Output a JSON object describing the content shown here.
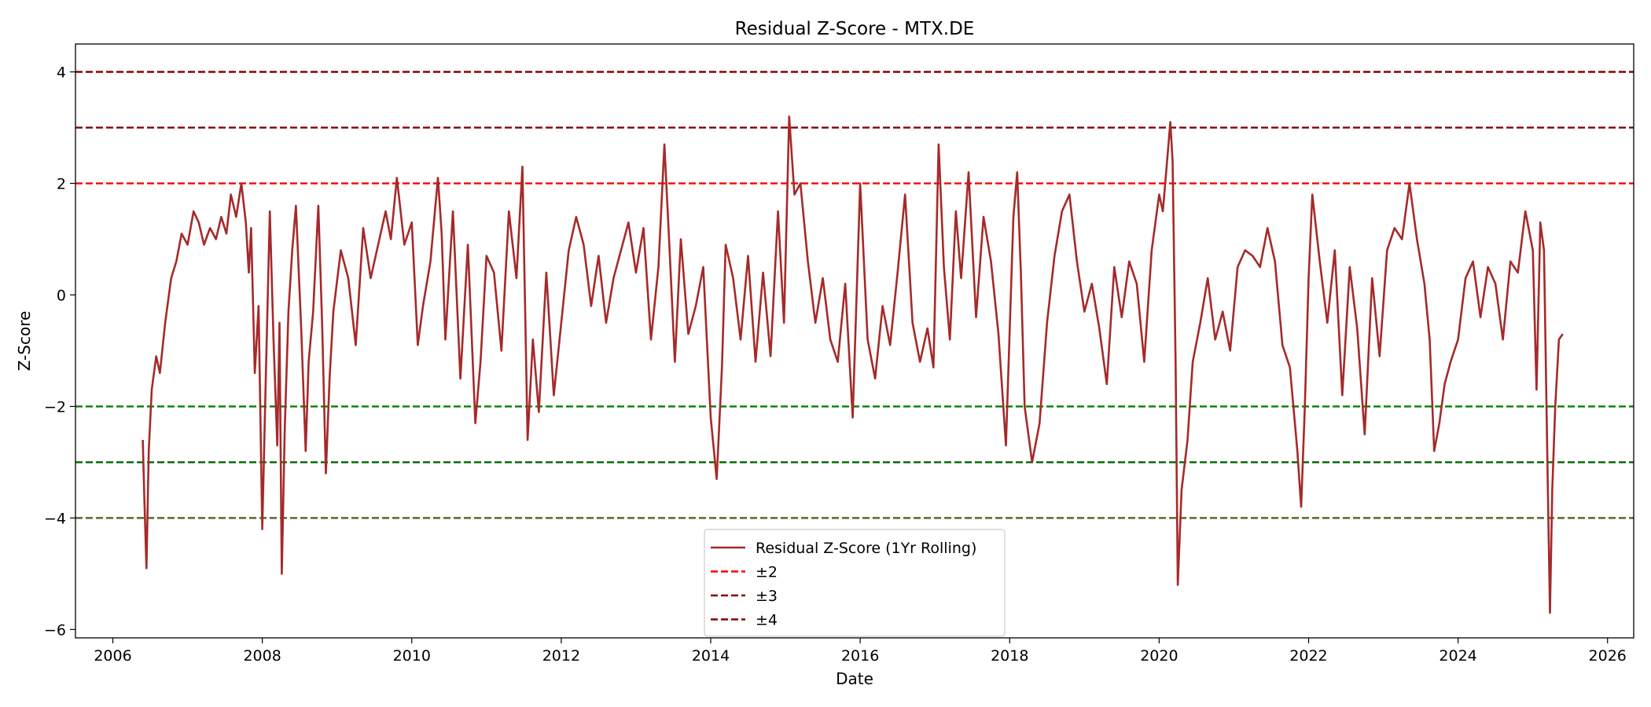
{
  "chart_data": {
    "type": "line",
    "title": "Residual Z-Score - MTX.DE",
    "xlabel": "Date",
    "ylabel": "Z-Score",
    "xlim": [
      2005.5,
      2026.35
    ],
    "ylim": [
      -6.15,
      4.5
    ],
    "xticks": [
      2006,
      2008,
      2010,
      2012,
      2014,
      2016,
      2018,
      2020,
      2022,
      2024,
      2026
    ],
    "yticks": [
      -6,
      -4,
      -2,
      0,
      2,
      4
    ],
    "grid": false,
    "legend_position": "lower center",
    "series": [
      {
        "name": "Residual Z-Score (1Yr Rolling)",
        "color": "#a52a2a",
        "x": [
          2006.4,
          2006.42,
          2006.45,
          2006.48,
          2006.52,
          2006.58,
          2006.63,
          2006.7,
          2006.78,
          2006.85,
          2006.92,
          2007.0,
          2007.08,
          2007.15,
          2007.22,
          2007.3,
          2007.38,
          2007.45,
          2007.52,
          2007.58,
          2007.65,
          2007.72,
          2007.78,
          2007.82,
          2007.85,
          2007.9,
          2007.95,
          2008.0,
          2008.05,
          2008.1,
          2008.15,
          2008.2,
          2008.23,
          2008.26,
          2008.3,
          2008.35,
          2008.4,
          2008.45,
          2008.52,
          2008.58,
          2008.62,
          2008.68,
          2008.75,
          2008.8,
          2008.85,
          2008.9,
          2008.95,
          2009.05,
          2009.15,
          2009.25,
          2009.35,
          2009.45,
          2009.55,
          2009.65,
          2009.72,
          2009.8,
          2009.9,
          2010.0,
          2010.08,
          2010.15,
          2010.25,
          2010.35,
          2010.4,
          2010.45,
          2010.55,
          2010.65,
          2010.75,
          2010.85,
          2010.92,
          2011.0,
          2011.1,
          2011.2,
          2011.3,
          2011.4,
          2011.48,
          2011.55,
          2011.62,
          2011.7,
          2011.8,
          2011.9,
          2012.0,
          2012.1,
          2012.2,
          2012.3,
          2012.4,
          2012.5,
          2012.6,
          2012.7,
          2012.8,
          2012.9,
          2013.0,
          2013.1,
          2013.2,
          2013.3,
          2013.38,
          2013.45,
          2013.52,
          2013.6,
          2013.7,
          2013.8,
          2013.9,
          2014.0,
          2014.08,
          2014.15,
          2014.2,
          2014.3,
          2014.4,
          2014.5,
          2014.6,
          2014.7,
          2014.8,
          2014.9,
          2014.98,
          2015.05,
          2015.12,
          2015.2,
          2015.3,
          2015.4,
          2015.5,
          2015.6,
          2015.7,
          2015.8,
          2015.9,
          2016.0,
          2016.1,
          2016.2,
          2016.3,
          2016.4,
          2016.5,
          2016.6,
          2016.7,
          2016.8,
          2016.9,
          2016.98,
          2017.05,
          2017.12,
          2017.2,
          2017.28,
          2017.35,
          2017.45,
          2017.55,
          2017.65,
          2017.75,
          2017.85,
          2017.95,
          2018.05,
          2018.1,
          2018.15,
          2018.2,
          2018.3,
          2018.4,
          2018.5,
          2018.6,
          2018.7,
          2018.8,
          2018.9,
          2019.0,
          2019.1,
          2019.2,
          2019.3,
          2019.4,
          2019.5,
          2019.6,
          2019.7,
          2019.8,
          2019.9,
          2020.0,
          2020.05,
          2020.1,
          2020.15,
          2020.18,
          2020.22,
          2020.25,
          2020.3,
          2020.38,
          2020.45,
          2020.55,
          2020.65,
          2020.75,
          2020.85,
          2020.95,
          2021.05,
          2021.15,
          2021.25,
          2021.35,
          2021.45,
          2021.55,
          2021.65,
          2021.75,
          2021.85,
          2021.9,
          2021.95,
          2022.0,
          2022.05,
          2022.15,
          2022.25,
          2022.35,
          2022.45,
          2022.55,
          2022.65,
          2022.75,
          2022.85,
          2022.95,
          2023.05,
          2023.15,
          2023.25,
          2023.35,
          2023.45,
          2023.55,
          2023.62,
          2023.68,
          2023.75,
          2023.82,
          2023.9,
          2024.0,
          2024.1,
          2024.2,
          2024.3,
          2024.4,
          2024.5,
          2024.6,
          2024.7,
          2024.8,
          2024.9,
          2025.0,
          2025.05,
          2025.1,
          2025.15,
          2025.2,
          2025.23,
          2025.26,
          2025.3,
          2025.35,
          2025.4
        ],
        "values": [
          -2.6,
          -3.6,
          -4.9,
          -2.8,
          -1.7,
          -1.1,
          -1.4,
          -0.5,
          0.3,
          0.6,
          1.1,
          0.9,
          1.5,
          1.3,
          0.9,
          1.2,
          1.0,
          1.4,
          1.1,
          1.8,
          1.4,
          2.0,
          1.3,
          0.4,
          1.2,
          -1.4,
          -0.2,
          -4.2,
          -1.3,
          1.5,
          -0.8,
          -2.7,
          -0.5,
          -5.0,
          -2.4,
          -0.3,
          0.8,
          1.6,
          -0.6,
          -2.8,
          -1.2,
          -0.3,
          1.6,
          -0.5,
          -3.2,
          -1.5,
          -0.3,
          0.8,
          0.3,
          -0.9,
          1.2,
          0.3,
          0.9,
          1.5,
          1.0,
          2.1,
          0.9,
          1.3,
          -0.9,
          -0.2,
          0.6,
          2.1,
          1.1,
          -0.8,
          1.5,
          -1.5,
          0.9,
          -2.3,
          -1.2,
          0.7,
          0.4,
          -1.0,
          1.5,
          0.3,
          2.3,
          -2.6,
          -0.8,
          -2.1,
          0.4,
          -1.8,
          -0.5,
          0.8,
          1.4,
          0.9,
          -0.2,
          0.7,
          -0.5,
          0.3,
          0.8,
          1.3,
          0.4,
          1.2,
          -0.8,
          0.5,
          2.7,
          0.8,
          -1.2,
          1.0,
          -0.7,
          -0.2,
          0.5,
          -2.2,
          -3.3,
          -1.3,
          0.9,
          0.3,
          -0.8,
          0.7,
          -1.2,
          0.4,
          -1.1,
          1.5,
          -0.5,
          3.2,
          1.8,
          2.0,
          0.6,
          -0.5,
          0.3,
          -0.8,
          -1.2,
          0.2,
          -2.2,
          2.0,
          -0.8,
          -1.5,
          -0.2,
          -0.9,
          0.4,
          1.8,
          -0.5,
          -1.2,
          -0.6,
          -1.3,
          2.7,
          0.5,
          -0.8,
          1.5,
          0.3,
          2.2,
          -0.4,
          1.4,
          0.6,
          -0.7,
          -2.7,
          1.4,
          2.2,
          0.4,
          -2.0,
          -3.0,
          -2.3,
          -0.5,
          0.7,
          1.5,
          1.8,
          0.6,
          -0.3,
          0.2,
          -0.6,
          -1.6,
          0.5,
          -0.4,
          0.6,
          0.2,
          -1.2,
          0.8,
          1.8,
          1.5,
          2.3,
          3.1,
          2.4,
          -1.2,
          -5.2,
          -3.5,
          -2.6,
          -1.2,
          -0.5,
          0.3,
          -0.8,
          -0.3,
          -1.0,
          0.5,
          0.8,
          0.7,
          0.5,
          1.2,
          0.6,
          -0.9,
          -1.3,
          -2.8,
          -3.8,
          -2.0,
          0.3,
          1.8,
          0.6,
          -0.5,
          0.8,
          -1.8,
          0.5,
          -0.6,
          -2.5,
          0.3,
          -1.1,
          0.8,
          1.2,
          1.0,
          2.0,
          1.0,
          0.2,
          -0.8,
          -2.8,
          -2.3,
          -1.6,
          -1.2,
          -0.8,
          0.3,
          0.6,
          -0.4,
          0.5,
          0.2,
          -0.8,
          0.6,
          0.4,
          1.5,
          0.8,
          -1.7,
          1.3,
          0.8,
          -3.4,
          -5.7,
          -3.5,
          -2.0,
          -0.8,
          -0.7
        ]
      },
      {
        "name": "±2",
        "style": "dashed",
        "color": "#ff0000",
        "levels": [
          2
        ],
        "legend": true
      },
      {
        "name": "±3",
        "style": "dashed",
        "color": "#8b0000",
        "levels": [
          3
        ],
        "legend": true
      },
      {
        "name": "±4",
        "style": "dashed",
        "color": "#8b0000",
        "levels": [
          4
        ],
        "legend": true
      },
      {
        "style": "dashed",
        "color": "#008000",
        "levels": [
          -2
        ],
        "legend": false
      },
      {
        "style": "dashed",
        "color": "#006400",
        "levels": [
          -3
        ],
        "legend": false
      },
      {
        "style": "dashed",
        "color": "#556b2f",
        "levels": [
          -4
        ],
        "legend": false
      }
    ]
  }
}
